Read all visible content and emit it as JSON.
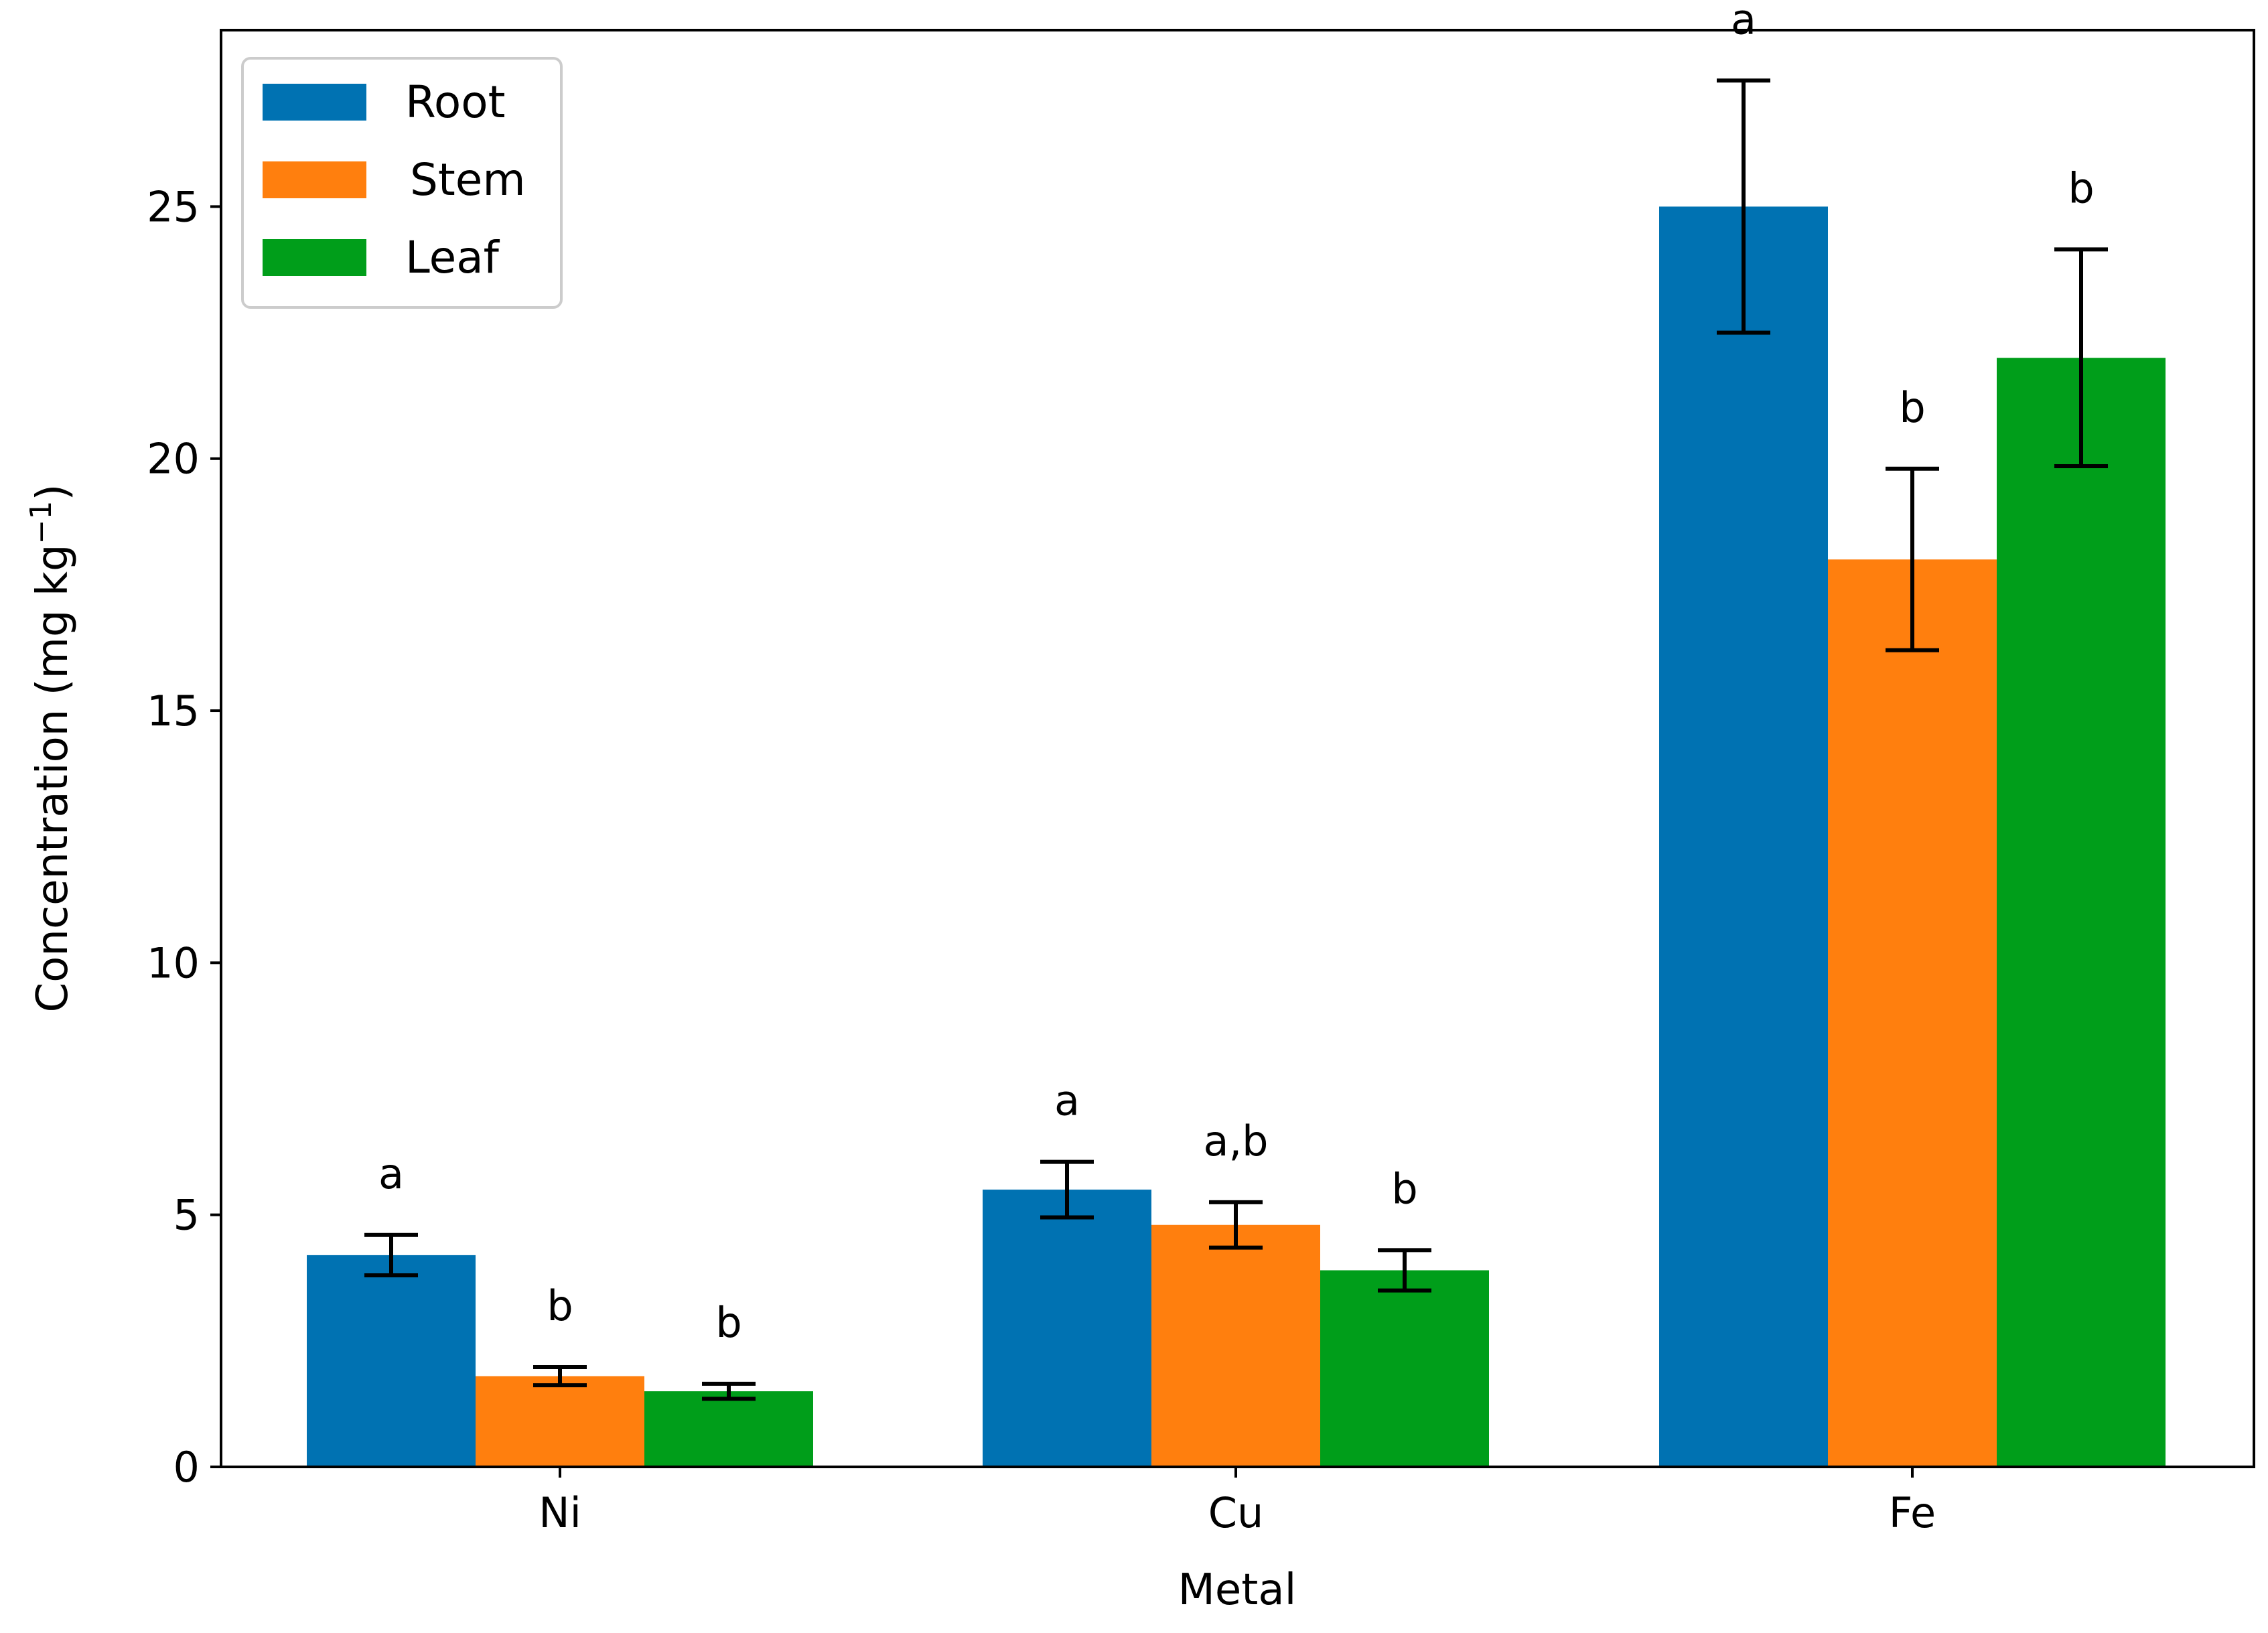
{
  "chart_data": {
    "type": "bar",
    "title": "",
    "xlabel": "Metal",
    "ylabel": "Concentration (mg kg",
    "ylabel_superscript": "−1",
    "ylabel_close": ")",
    "categories": [
      "Ni",
      "Cu",
      "Fe"
    ],
    "ylim": [
      0,
      28.5
    ],
    "yticks": [
      0,
      5,
      10,
      15,
      20,
      25
    ],
    "series": [
      {
        "name": "Root",
        "color": "#0072B2",
        "values": [
          4.2,
          5.5,
          25.0
        ],
        "errors": [
          0.4,
          0.55,
          2.5
        ],
        "significance": [
          "a",
          "a",
          "a"
        ]
      },
      {
        "name": "Stem",
        "color": "#FF7F0E",
        "values": [
          1.8,
          4.8,
          18.0
        ],
        "errors": [
          0.18,
          0.45,
          1.8
        ],
        "significance": [
          "b",
          "a,b",
          "b"
        ]
      },
      {
        "name": "Leaf",
        "color": "#009E1A",
        "values": [
          1.5,
          3.9,
          22.0
        ],
        "errors": [
          0.15,
          0.4,
          2.15
        ],
        "significance": [
          "b",
          "b",
          "b"
        ]
      }
    ],
    "legend_position": "top-left",
    "grid": false
  }
}
